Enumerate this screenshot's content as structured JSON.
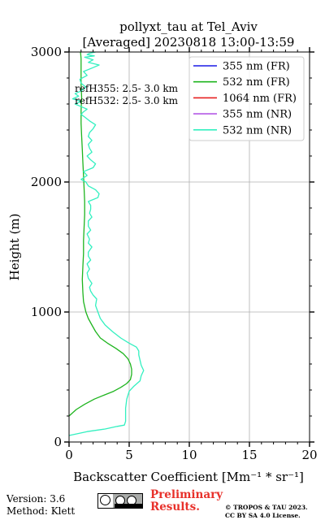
{
  "chart_data": {
    "type": "line",
    "title": "pollyxt_tau at Tel_Aviv",
    "subtitle": "[Averaged] 20230818 13:00-13:59",
    "xlabel": "Backscatter Coefficient [Mm⁻¹ * sr⁻¹]",
    "ylabel": "Height (m)",
    "xlim": [
      0,
      20
    ],
    "ylim": [
      0,
      3000
    ],
    "xticks": [
      "0",
      "5",
      "10",
      "15",
      "20"
    ],
    "yticks": [
      "0",
      "1000",
      "2000",
      "3000"
    ],
    "grid": true,
    "legend_position": "top-right",
    "annotations": [
      "refH355:  2.5- 3.0 km",
      "refH532:  2.5- 3.0 km"
    ],
    "series": [
      {
        "name": "355 nm (FR)",
        "color": "#1a1ae6",
        "x": [],
        "y": []
      },
      {
        "name": "532 nm (FR)",
        "color": "#1eb41e",
        "x": [
          0.0,
          0.6,
          1.3,
          2.1,
          2.9,
          3.7,
          4.3,
          4.8,
          5.1,
          5.2,
          5.2,
          5.1,
          4.9,
          4.5,
          3.9,
          3.2,
          2.6,
          2.2,
          1.9,
          1.6,
          1.4,
          1.2,
          1.15,
          1.1,
          1.15,
          1.2,
          1.2,
          1.25,
          1.3,
          1.3,
          1.25,
          1.2,
          1.15,
          1.1,
          1.05,
          1.0,
          1.0,
          1.05,
          1.0,
          1.0,
          1.0,
          0.95
        ],
        "y": [
          200,
          250,
          290,
          330,
          360,
          390,
          420,
          450,
          480,
          520,
          560,
          600,
          640,
          680,
          720,
          760,
          800,
          850,
          900,
          950,
          1000,
          1080,
          1150,
          1250,
          1350,
          1450,
          1550,
          1650,
          1750,
          1850,
          1950,
          2050,
          2150,
          2250,
          2350,
          2450,
          2550,
          2650,
          2750,
          2850,
          2950,
          3000
        ]
      },
      {
        "name": "1064 nm (FR)",
        "color": "#e62020",
        "x": [],
        "y": []
      },
      {
        "name": "355 nm (NR)",
        "color": "#b45ae6",
        "x": [],
        "y": []
      },
      {
        "name": "532 nm (NR)",
        "color": "#33f0c0",
        "x": [
          0.0,
          1.5,
          3.0,
          4.0,
          4.6,
          4.7,
          4.7,
          4.7,
          4.8,
          5.0,
          5.4,
          5.9,
          6.0,
          6.2,
          6.0,
          5.9,
          5.8,
          5.8,
          5.6,
          5.0,
          4.3,
          3.6,
          3.0,
          2.6,
          2.4,
          2.2,
          2.3,
          2.0,
          1.8,
          1.7,
          1.9,
          1.6,
          1.5,
          1.7,
          1.5,
          1.8,
          1.6,
          1.6,
          1.9,
          1.6,
          1.7,
          1.5,
          1.8,
          1.6,
          1.6,
          1.9,
          1.7,
          1.8,
          1.8,
          1.6,
          2.4,
          2.5,
          2.2,
          1.6,
          1.4,
          1.0,
          1.5,
          1.2,
          2.0,
          2.2,
          1.8,
          1.5,
          1.9,
          1.7,
          1.6,
          1.9,
          1.6,
          1.7,
          2.0,
          2.2,
          1.7,
          1.3,
          1.0,
          1.2,
          1.5,
          1.0,
          0.5,
          1.0,
          0.3,
          0.8,
          0.5,
          1.0,
          1.4,
          1.0,
          0.9,
          1.5,
          1.2,
          2.0,
          2.5,
          1.6,
          2.0,
          1.3,
          2.1,
          1.5,
          1.7,
          2.2
        ],
        "y": [
          50,
          80,
          100,
          120,
          130,
          160,
          200,
          260,
          330,
          390,
          430,
          470,
          510,
          550,
          590,
          630,
          670,
          700,
          730,
          760,
          800,
          850,
          900,
          950,
          1000,
          1050,
          1100,
          1130,
          1160,
          1190,
          1220,
          1260,
          1300,
          1330,
          1370,
          1400,
          1430,
          1460,
          1500,
          1530,
          1560,
          1600,
          1630,
          1660,
          1700,
          1730,
          1760,
          1790,
          1820,
          1850,
          1880,
          1910,
          1940,
          1970,
          2000,
          2020,
          2050,
          2080,
          2110,
          2140,
          2170,
          2200,
          2230,
          2260,
          2290,
          2320,
          2350,
          2380,
          2410,
          2440,
          2470,
          2500,
          2520,
          2540,
          2560,
          2580,
          2600,
          2620,
          2640,
          2660,
          2680,
          2700,
          2730,
          2760,
          2790,
          2820,
          2850,
          2880,
          2900,
          2920,
          2940,
          2960,
          2970,
          2980,
          2990,
          3000
        ]
      }
    ]
  },
  "footer": {
    "version": "Version: 3.6",
    "method": "Method: Klett",
    "preliminary_line1": "Preliminary",
    "preliminary_line2": "Results.",
    "copyright_line1": "© TROPOS & TAU 2023.",
    "copyright_line2": "CC BY SA 4.0 License.",
    "cc_badge_icons": [
      "cc-icon",
      "by-icon",
      "sa-icon"
    ]
  }
}
